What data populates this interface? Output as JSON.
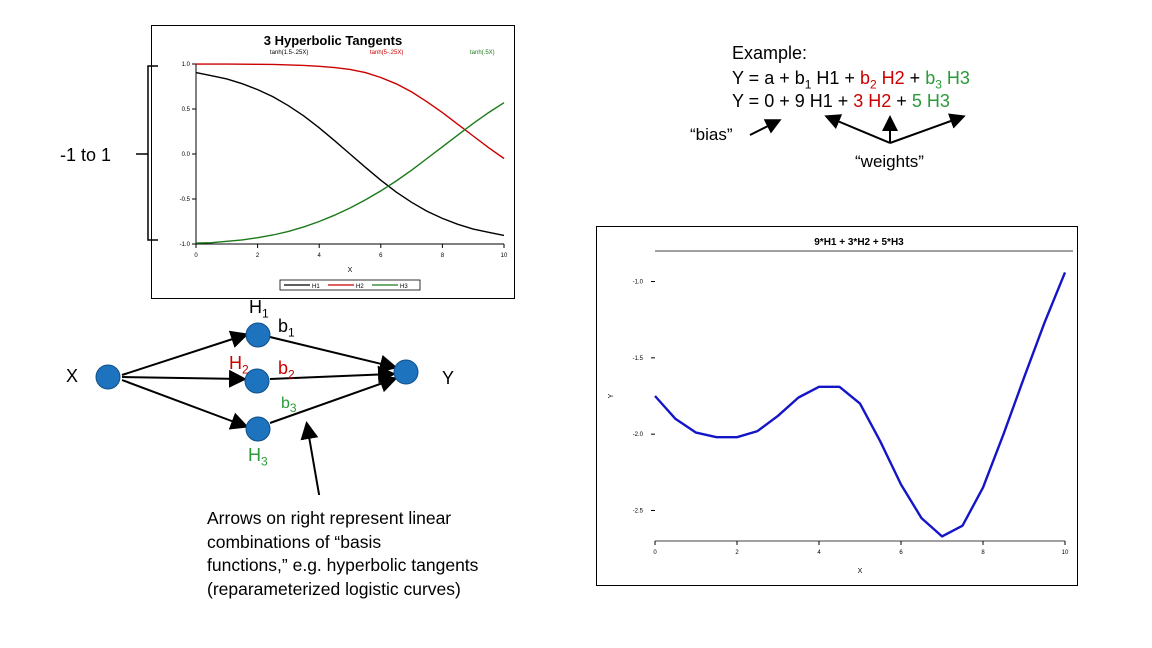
{
  "colors": {
    "black": "#000000",
    "red": "#cc0000",
    "green": "#1a7a1a",
    "blue": "#1515c8",
    "node": "#1e73be",
    "label_green": "#2a9a3a"
  },
  "chart_data": [
    {
      "type": "line",
      "title": "3 Hyperbolic Tangents",
      "x": [
        0,
        0.5,
        1,
        1.5,
        2,
        2.5,
        3,
        3.5,
        4,
        4.5,
        5,
        5.5,
        6,
        6.5,
        7,
        7.5,
        8,
        8.5,
        9,
        9.5,
        10
      ],
      "xlim": [
        0,
        10
      ],
      "ylim": [
        -1,
        1
      ],
      "xlabel": "X",
      "xticks": [
        "0",
        "2",
        "4",
        "6",
        "8",
        "10"
      ],
      "yticks": [
        "-1.0",
        "-0.5",
        "0.0",
        "0.5",
        "1.0"
      ],
      "series": [
        {
          "name": "tanh(1.5-.25X)",
          "values": [
            0.905,
            0.87,
            0.834,
            0.781,
            0.716,
            0.635,
            0.537,
            0.423,
            0.291,
            0.148,
            0.0,
            -0.148,
            -0.291,
            -0.423,
            -0.537,
            -0.635,
            -0.716,
            -0.781,
            -0.834,
            -0.87,
            -0.905
          ]
        },
        {
          "name": "tanh(5-.25X)",
          "values": [
            0.999,
            0.999,
            0.999,
            0.998,
            0.997,
            0.995,
            0.99,
            0.984,
            0.975,
            0.96,
            0.94,
            0.905,
            0.85,
            0.78,
            0.69,
            0.58,
            0.46,
            0.33,
            0.2,
            0.07,
            -0.05
          ]
        },
        {
          "name": "tanh(.5X)",
          "values": [
            -0.99,
            -0.985,
            -0.97,
            -0.955,
            -0.93,
            -0.9,
            -0.86,
            -0.81,
            -0.75,
            -0.68,
            -0.6,
            -0.51,
            -0.41,
            -0.3,
            -0.18,
            -0.05,
            0.08,
            0.21,
            0.34,
            0.46,
            0.57
          ]
        }
      ],
      "legend_labels": [
        "tanh(1.5-.25X)",
        "tanh(5-.25X)",
        "tanh(.5X)"
      ],
      "legend_box_labels": [
        "H1",
        "H2",
        "H3"
      ]
    },
    {
      "type": "line",
      "title": "9*H1 + 3*H2 + 5*H3",
      "xlabel": "X",
      "ylabel": "Y",
      "xlim": [
        0,
        10
      ],
      "ylim": [
        -2.7,
        -0.8
      ],
      "xticks": [
        "0",
        "2",
        "4",
        "6",
        "8",
        "10"
      ],
      "yticks": [
        "-1.0",
        "-1.5",
        "-2.0",
        "-2.5"
      ],
      "x": [
        0,
        0.5,
        1,
        1.5,
        2,
        2.5,
        3,
        3.5,
        4,
        4.5,
        5,
        5.5,
        6,
        6.5,
        7,
        7.5,
        8,
        8.5,
        9,
        9.5,
        10
      ],
      "series": [
        {
          "values": [
            -1.75,
            -1.9,
            -1.99,
            -2.02,
            -2.02,
            -1.98,
            -1.88,
            -1.76,
            -1.69,
            -1.69,
            -1.8,
            -2.05,
            -2.33,
            -2.55,
            -2.67,
            -2.6,
            -2.35,
            -2.0,
            -1.63,
            -1.27,
            -0.94
          ]
        }
      ]
    }
  ],
  "left_label": "-1 to 1",
  "equation": {
    "line1": "Example:",
    "line2": {
      "y": "Y = a + b",
      "s1": "1",
      "h1": " H1 + ",
      "b2": "b",
      "s2": "2",
      "h2": " H2",
      "plus": " + ",
      "b3": "b",
      "s3": "3",
      "h3": " H3"
    },
    "line3": {
      "a": "Y = 0 + ",
      "w1": "9",
      "h1": "  H1 + ",
      "w2": "3",
      "h2": "  H2",
      "plus": " + ",
      "w3": "5",
      "h3": "  H3"
    },
    "bias": "“bias”",
    "weights": "“weights”"
  },
  "network": {
    "x": "X",
    "y": "Y",
    "h1": "H",
    "h1_sub": "1",
    "b1": "b",
    "b1_sub": "1",
    "h2": "H",
    "h2_sub": "2",
    "b2": "b",
    "b2_sub": "2",
    "h3": "H",
    "h3_sub": "3",
    "b3": "b",
    "b3_sub": "3"
  },
  "note": {
    "line1": "Arrows on right represent linear",
    "line2": "combinations of “basis",
    "line3": "functions,” e.g. hyperbolic tangents",
    "line4": "(reparameterized logistic curves)"
  }
}
